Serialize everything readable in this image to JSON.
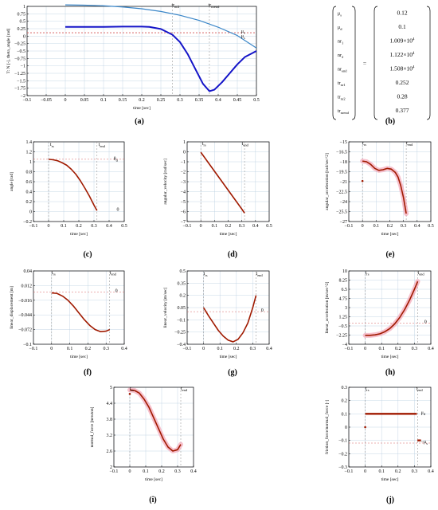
{
  "colors": {
    "blue_light": "#3a86c8",
    "blue_dark": "#1414c8",
    "red_curve": "#a01a00",
    "pink_band": "#f4a6b8",
    "grid": "#b8cde0",
    "ref_dashed": "#d86060"
  },
  "chart_data": [
    {
      "id": "a",
      "type": "line",
      "caption": "(a)",
      "xlabel": "time [sec]",
      "ylabel": "T: N [-], theta_angle [rad]",
      "xlim": [
        -0.1,
        0.5
      ],
      "ylim": [
        -2,
        1
      ],
      "xticks": [
        -0.1,
        -0.05,
        0,
        0.05,
        0.1,
        0.15,
        0.2,
        0.25,
        0.3,
        0.35,
        0.4,
        0.45,
        0.5
      ],
      "xtick_labels": [
        "−0.1",
        "−0.05",
        "0",
        "0.05",
        "0.1",
        "0.15",
        "0.2",
        "0.25",
        "0.3",
        "0.35",
        "0.4",
        "0.45",
        "0.5"
      ],
      "yticks": [
        -2,
        -1.75,
        -1.5,
        -1.25,
        -1,
        -0.75,
        -0.5,
        -0.25,
        0,
        0.25,
        0.5,
        0.75,
        1
      ],
      "ytick_labels": [
        "−2",
        "−1.75",
        "−1.5",
        "−1.25",
        "−1",
        "−0.75",
        "−0.5",
        "−0.25",
        "0",
        "0.25",
        "0.5",
        "0.75",
        "1"
      ],
      "grid": true,
      "vlines": [
        0.28,
        0.377
      ],
      "hlines": [
        0.12,
        0.1
      ],
      "annotations": [
        {
          "main": "tr",
          "sub": "nr2",
          "x": 0.278,
          "y": 1.0
        },
        {
          "main": "tr",
          "sub": "nrend",
          "x": 0.374,
          "y": 1.0
        },
        {
          "main": "μ",
          "sub": "s",
          "x": 0.46,
          "y": 0.12
        },
        {
          "main": "μ",
          "sub": "s",
          "x": 0.46,
          "y": -0.05
        }
      ],
      "series": [
        {
          "name": "",
          "color_key": "blue_light",
          "width": 1.2,
          "x": [
            0,
            0.05,
            0.1,
            0.15,
            0.2,
            0.25,
            0.3,
            0.35,
            0.4,
            0.45,
            0.5
          ],
          "y": [
            1.05,
            1.04,
            1.02,
            0.98,
            0.92,
            0.83,
            0.7,
            0.53,
            0.3,
            0.02,
            -0.4
          ]
        },
        {
          "name": "",
          "color_key": "blue_dark",
          "width": 2.0,
          "x": [
            0,
            0.05,
            0.1,
            0.15,
            0.2,
            0.22,
            0.25,
            0.28,
            0.3,
            0.32,
            0.34,
            0.36,
            0.377,
            0.39,
            0.41,
            0.43,
            0.45,
            0.47,
            0.5
          ],
          "y": [
            0.31,
            0.31,
            0.31,
            0.32,
            0.32,
            0.31,
            0.24,
            0.05,
            -0.2,
            -0.6,
            -1.1,
            -1.6,
            -1.85,
            -1.8,
            -1.55,
            -1.25,
            -0.95,
            -0.7,
            -0.5
          ]
        }
      ]
    },
    {
      "id": "c",
      "type": "line",
      "caption": "(c)",
      "xlabel": "time [sec]",
      "ylabel": "angle [rad]",
      "xlim": [
        -0.1,
        0.5
      ],
      "ylim": [
        -0.2,
        1.4
      ],
      "xticks": [
        -0.1,
        0,
        0.1,
        0.2,
        0.3,
        0.4,
        0.5
      ],
      "xtick_labels": [
        "−0.1",
        "0",
        "0.1",
        "0.2",
        "0.3",
        "0.4",
        "0.5"
      ],
      "yticks": [
        -0.2,
        0,
        0.2,
        0.4,
        0.6,
        0.8,
        1,
        1.2,
        1.4
      ],
      "ytick_labels": [
        "−0.2",
        "0",
        "0.2",
        "0.4",
        "0.6",
        "0.8",
        "1",
        "1.2",
        "1.4"
      ],
      "grid": true,
      "vlines": [
        0,
        0.32
      ],
      "hlines": [
        1.05
      ],
      "annotations": [
        {
          "main": "t",
          "sub": "rs",
          "x": 0.01,
          "y": 1.32
        },
        {
          "main": "t",
          "sub": "end",
          "x": 0.33,
          "y": 1.32
        },
        {
          "main": "θ",
          "sub": "0",
          "x": 0.43,
          "y": 1.03
        },
        {
          "main": "0",
          "sub": "",
          "x": 0.45,
          "y": 0.02
        }
      ],
      "series": [
        {
          "name": "",
          "color_key": "red_curve",
          "width": 1.6,
          "x": [
            0,
            0.03,
            0.06,
            0.09,
            0.12,
            0.15,
            0.18,
            0.21,
            0.24,
            0.27,
            0.3,
            0.32
          ],
          "y": [
            1.05,
            1.04,
            1.02,
            0.98,
            0.93,
            0.85,
            0.75,
            0.62,
            0.47,
            0.31,
            0.13,
            0.02
          ]
        }
      ]
    },
    {
      "id": "d",
      "type": "line",
      "caption": "(d)",
      "xlabel": "time [sec]",
      "ylabel": "angular_velocity [rad/sec]",
      "xlim": [
        -0.1,
        0.5
      ],
      "ylim": [
        -7,
        1
      ],
      "xticks": [
        -0.1,
        0,
        0.1,
        0.2,
        0.3,
        0.4,
        0.5
      ],
      "xtick_labels": [
        "−0.1",
        "0",
        "0.1",
        "0.2",
        "0.3",
        "0.4",
        "0.5"
      ],
      "yticks": [
        -7,
        -6,
        -5,
        -4,
        -3,
        -2,
        -1,
        0,
        1
      ],
      "ytick_labels": [
        "−7",
        "−6",
        "−5",
        "−4",
        "−3",
        "−2",
        "−1",
        "0",
        "1"
      ],
      "grid": true,
      "vlines": [
        0,
        0.32
      ],
      "hlines": [],
      "annotations": [
        {
          "main": "t",
          "sub": "rs",
          "x": 0.01,
          "y": 0.7
        },
        {
          "main": "t",
          "sub": "end",
          "x": 0.3,
          "y": 0.7
        }
      ],
      "series": [
        {
          "name": "",
          "color_key": "red_curve",
          "width": 1.6,
          "x": [
            0,
            0.05,
            0.1,
            0.15,
            0.2,
            0.25,
            0.3,
            0.32
          ],
          "y": [
            -0.05,
            -1.0,
            -1.95,
            -2.9,
            -3.85,
            -4.8,
            -5.75,
            -6.15
          ]
        }
      ]
    },
    {
      "id": "e",
      "type": "line",
      "caption": "(e)",
      "xlabel": "time [sec]",
      "ylabel": "angular_acceleration [rad/sec^2]",
      "xlim": [
        -0.1,
        0.5
      ],
      "ylim": [
        -27,
        -15
      ],
      "xticks": [
        -0.1,
        0,
        0.1,
        0.2,
        0.3,
        0.4,
        0.5
      ],
      "xtick_labels": [
        "−0.1",
        "0",
        "0.1",
        "0.2",
        "0.3",
        "0.4",
        "0.5"
      ],
      "yticks": [
        -27,
        -25.5,
        -24,
        -22.5,
        -21,
        -19.5,
        -18,
        -16.5,
        -15
      ],
      "ytick_labels": [
        "−27",
        "−25.5",
        "−24",
        "−22.5",
        "−21",
        "−19.5",
        "−18",
        "−16.5",
        "−15"
      ],
      "grid": true,
      "vlines": [
        0,
        0.32
      ],
      "hlines": [],
      "annotations": [
        {
          "main": "t",
          "sub": "rs",
          "x": 0.0,
          "y": -15.4
        },
        {
          "main": "t",
          "sub": "end",
          "x": 0.32,
          "y": -15.4
        }
      ],
      "points": [
        {
          "x": 0.0,
          "y": -20.9
        }
      ],
      "series": [
        {
          "name": "",
          "color_key": "red_curve",
          "width": 1.6,
          "band": true,
          "x": [
            0,
            0.03,
            0.06,
            0.09,
            0.12,
            0.15,
            0.18,
            0.21,
            0.24,
            0.26,
            0.28,
            0.3,
            0.31,
            0.32
          ],
          "y": [
            -17.9,
            -18.0,
            -18.4,
            -19.0,
            -19.3,
            -19.2,
            -19.0,
            -19.1,
            -19.6,
            -20.3,
            -21.6,
            -23.4,
            -24.6,
            -25.8
          ]
        }
      ]
    },
    {
      "id": "f",
      "type": "line",
      "caption": "(f)",
      "xlabel": "time [sec]",
      "ylabel": "linear_displacement [m]",
      "xlim": [
        -0.1,
        0.4
      ],
      "ylim": [
        -0.1,
        0.04
      ],
      "xticks": [
        -0.1,
        0,
        0.1,
        0.2,
        0.3,
        0.4
      ],
      "xtick_labels": [
        "−0.1",
        "0",
        "0.1",
        "0.2",
        "0.3",
        "0.4"
      ],
      "yticks": [
        -0.1,
        -0.072,
        -0.044,
        -0.016,
        0.012,
        0.04
      ],
      "ytick_labels": [
        "−0.1",
        "−0.072",
        "−0.044",
        "−0.016",
        "0.012",
        "0.04"
      ],
      "grid": true,
      "vlines": [
        0,
        0.32
      ],
      "hlines": [
        0
      ],
      "annotations": [
        {
          "main": "t",
          "sub": "rs",
          "x": 0.0,
          "y": 0.034
        },
        {
          "main": "t",
          "sub": "end",
          "x": 0.32,
          "y": 0.034
        },
        {
          "main": "0",
          "sub": "",
          "x": 0.35,
          "y": 0.0
        }
      ],
      "series": [
        {
          "name": "",
          "color_key": "red_curve",
          "width": 1.6,
          "x": [
            0,
            0.03,
            0.06,
            0.09,
            0.12,
            0.15,
            0.18,
            0.21,
            0.24,
            0.27,
            0.3,
            0.32
          ],
          "y": [
            -0.002,
            -0.003,
            -0.008,
            -0.016,
            -0.027,
            -0.04,
            -0.053,
            -0.064,
            -0.072,
            -0.076,
            -0.075,
            -0.072
          ]
        }
      ]
    },
    {
      "id": "g",
      "type": "line",
      "caption": "(g)",
      "xlabel": "time [sec]",
      "ylabel": "linear_velocity [m/sec]",
      "xlim": [
        -0.1,
        0.4
      ],
      "ylim": [
        -0.4,
        0.5
      ],
      "xticks": [
        -0.1,
        0,
        0.1,
        0.2,
        0.3,
        0.4
      ],
      "xtick_labels": [
        "−0.1",
        "0",
        "0.1",
        "0.2",
        "0.3",
        "0.4"
      ],
      "yticks": [
        -0.4,
        -0.25,
        -0.1,
        0.05,
        0.2,
        0.35,
        0.5
      ],
      "ytick_labels": [
        "−0.4",
        "−0.25",
        "−0.1",
        "0.05",
        "0.2",
        "0.35",
        "0.5"
      ],
      "grid": true,
      "vlines": [
        0,
        0.32
      ],
      "hlines": [
        0
      ],
      "annotations": [
        {
          "main": "t",
          "sub": "rs",
          "x": 0.0,
          "y": 0.45
        },
        {
          "main": "t",
          "sub": "end",
          "x": 0.32,
          "y": 0.45
        },
        {
          "main": "0",
          "sub": "",
          "x": 0.35,
          "y": 0.0
        }
      ],
      "series": [
        {
          "name": "",
          "color_key": "red_curve",
          "width": 1.6,
          "x": [
            0,
            0.03,
            0.06,
            0.09,
            0.12,
            0.15,
            0.18,
            0.21,
            0.24,
            0.27,
            0.3,
            0.32
          ],
          "y": [
            0.05,
            -0.05,
            -0.14,
            -0.23,
            -0.3,
            -0.35,
            -0.37,
            -0.34,
            -0.26,
            -0.14,
            0.05,
            0.2
          ]
        }
      ]
    },
    {
      "id": "h",
      "type": "line",
      "caption": "(h)",
      "xlabel": "time [sec]",
      "ylabel": "linear_acceleration [m/sec^2]",
      "xlim": [
        -0.1,
        0.4
      ],
      "ylim": [
        -4,
        10
      ],
      "xticks": [
        -0.1,
        0,
        0.1,
        0.2,
        0.3,
        0.4
      ],
      "xtick_labels": [
        "−0.1",
        "0",
        "0.1",
        "0.2",
        "0.3",
        "0.4"
      ],
      "yticks": [
        -4,
        -2.25,
        -0.5,
        1.25,
        3,
        4.75,
        6.5,
        8.25,
        10
      ],
      "ytick_labels": [
        "−4",
        "−2.25",
        "−0.5",
        "1.25",
        "3",
        "4.75",
        "6.5",
        "8.25",
        "10"
      ],
      "grid": true,
      "vlines": [
        0,
        0.32
      ],
      "hlines": [
        0
      ],
      "annotations": [
        {
          "main": "t",
          "sub": "rs",
          "x": 0.0,
          "y": 9.4
        },
        {
          "main": "t",
          "sub": "end",
          "x": 0.32,
          "y": 9.4
        },
        {
          "main": "0",
          "sub": "",
          "x": 0.36,
          "y": 0.0
        }
      ],
      "series": [
        {
          "name": "",
          "color_key": "red_curve",
          "width": 1.6,
          "band": true,
          "x": [
            0,
            0.03,
            0.06,
            0.09,
            0.12,
            0.15,
            0.18,
            0.21,
            0.24,
            0.27,
            0.3,
            0.32
          ],
          "y": [
            -2.3,
            -2.3,
            -2.2,
            -2.0,
            -1.6,
            -1.0,
            -0.1,
            1.1,
            2.6,
            4.4,
            6.5,
            8.0
          ]
        }
      ]
    },
    {
      "id": "i",
      "type": "line",
      "caption": "(i)",
      "xlabel": "time [sec]",
      "ylabel": "normal_force [newton]",
      "xlim": [
        -0.1,
        0.4
      ],
      "ylim": [
        2,
        5
      ],
      "xticks": [
        -0.1,
        0,
        0.1,
        0.2,
        0.3,
        0.4
      ],
      "xtick_labels": [
        "−0.1",
        "0",
        "0.1",
        "0.2",
        "0.3",
        "0.4"
      ],
      "yticks": [
        2,
        2.6,
        3.2,
        3.8,
        4.4,
        5
      ],
      "ytick_labels": [
        "2",
        "2.6",
        "3.2",
        "3.8",
        "4.4",
        "5"
      ],
      "grid": true,
      "vlines": [
        0,
        0.32
      ],
      "hlines": [],
      "annotations": [
        {
          "main": "t",
          "sub": "rs",
          "x": 0.0,
          "y": 4.9
        },
        {
          "main": "t",
          "sub": "end",
          "x": 0.32,
          "y": 4.9
        }
      ],
      "points": [
        {
          "x": 0.0,
          "y": 4.75
        }
      ],
      "series": [
        {
          "name": "",
          "color_key": "red_curve",
          "width": 1.6,
          "band": true,
          "x": [
            0,
            0.03,
            0.06,
            0.09,
            0.12,
            0.15,
            0.18,
            0.21,
            0.24,
            0.27,
            0.3,
            0.32
          ],
          "y": [
            4.9,
            4.88,
            4.78,
            4.55,
            4.25,
            3.85,
            3.45,
            3.05,
            2.75,
            2.6,
            2.65,
            2.85
          ]
        }
      ]
    },
    {
      "id": "j",
      "type": "line",
      "caption": "(j)",
      "xlabel": "time [sec]",
      "ylabel": "friction_force/normal_force [-]",
      "xlim": [
        -0.1,
        0.4
      ],
      "ylim": [
        -0.3,
        0.3
      ],
      "xticks": [
        -0.1,
        0,
        0.1,
        0.2,
        0.3,
        0.4
      ],
      "xtick_labels": [
        "−0.1",
        "0",
        "0.1",
        "0.2",
        "0.3",
        "0.4"
      ],
      "yticks": [
        -0.3,
        -0.2,
        -0.1,
        0,
        0.1,
        0.2,
        0.3
      ],
      "ytick_labels": [
        "−0.3",
        "−0.2",
        "−0.1",
        "0",
        "0.1",
        "0.2",
        "0.3"
      ],
      "grid": true,
      "vlines": [
        0,
        0.32
      ],
      "hlines": [
        -0.12
      ],
      "annotations": [
        {
          "main": "t",
          "sub": "rs",
          "x": 0.0,
          "y": 0.28
        },
        {
          "main": "t",
          "sub": "end",
          "x": 0.31,
          "y": 0.28
        },
        {
          "main": "μ",
          "sub": "d",
          "x": 0.34,
          "y": 0.1
        },
        {
          "main": "−μ",
          "sub": "s",
          "x": 0.34,
          "y": -0.12
        }
      ],
      "points": [
        {
          "x": 0.0,
          "y": 0.0
        }
      ],
      "series": [
        {
          "name": "",
          "color_key": "red_curve",
          "width": 2.4,
          "x": [
            0.0,
            0.315
          ],
          "y": [
            0.1,
            0.1
          ]
        },
        {
          "name": "",
          "color_key": "red_curve",
          "width": 2.4,
          "x": [
            0.318,
            0.34
          ],
          "y": [
            -0.1,
            -0.1
          ]
        }
      ]
    }
  ],
  "panel_b": {
    "caption": "(b)",
    "equals": "=",
    "rows": [
      {
        "main": "μ",
        "sub": "s",
        "value": "0.12"
      },
      {
        "main": "μ",
        "sub": "d",
        "value": "0.1"
      },
      {
        "main": "nr",
        "sub": "1",
        "mant": "1.009×10",
        "exp": "4"
      },
      {
        "main": "nr",
        "sub": "2",
        "mant": "1.122×10",
        "exp": "4"
      },
      {
        "main": "nr",
        "sub": "end",
        "mant": "1.508×10",
        "exp": "4"
      },
      {
        "main": "tr",
        "sub": "nr1",
        "value": "0.252"
      },
      {
        "main": "tr",
        "sub": "nr2",
        "value": "0.28"
      },
      {
        "main": "tr",
        "sub": "nrend",
        "value": "0.377"
      }
    ]
  }
}
